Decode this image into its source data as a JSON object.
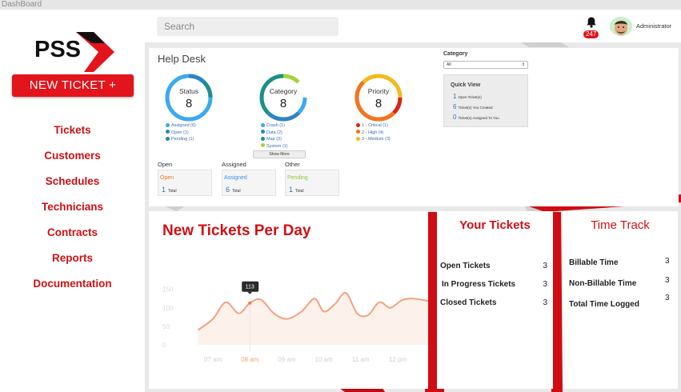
{
  "window": {
    "title": "DashBoard"
  },
  "sidebar": {
    "logo_text": "PSS",
    "new_ticket_label": "NEW TICKET  +",
    "items": [
      {
        "label": "Tickets"
      },
      {
        "label": "Customers"
      },
      {
        "label": "Schedules"
      },
      {
        "label": "Technicians"
      },
      {
        "label": "Contracts"
      },
      {
        "label": "Reports"
      },
      {
        "label": "Documentation"
      }
    ]
  },
  "topbar": {
    "search_placeholder": "Search",
    "notification_count": "247",
    "user_name": "Administrator"
  },
  "helpdesk": {
    "title": "Help Desk",
    "donuts": [
      {
        "label": "Status",
        "value": "8",
        "segments": [
          {
            "name": "Assigned (6)",
            "color": "#3aaaf0"
          },
          {
            "name": "Open (1)",
            "color": "#2d84c4"
          },
          {
            "name": "Pending (1)",
            "color": "#1c8f86"
          }
        ]
      },
      {
        "label": "Category",
        "value": "8",
        "segments": [
          {
            "name": "Crash (1)",
            "color": "#3aaaf0"
          },
          {
            "name": "Data (2)",
            "color": "#2d84c4"
          },
          {
            "name": "Map (3)",
            "color": "#1c8f86"
          },
          {
            "name": "System (1)",
            "color": "#a6d23a"
          }
        ]
      },
      {
        "label": "Priority",
        "value": "8",
        "segments": [
          {
            "name": "1 - Critical (1)",
            "color": "#d9231b"
          },
          {
            "name": "2 - High (4)",
            "color": "#f27420"
          },
          {
            "name": "3 - Medium (3)",
            "color": "#f7b81b"
          }
        ]
      }
    ],
    "show_more_label": "Show More",
    "groups": [
      {
        "title": "Open",
        "name": "Open",
        "name_color": "#f27420",
        "count": "1",
        "count_label": "Total"
      },
      {
        "title": "Assigned",
        "name": "Assigned",
        "name_color": "#3a8fe0",
        "count": "6",
        "count_label": "Total"
      },
      {
        "title": "Other",
        "name": "Pending",
        "name_color": "#8cc63f",
        "count": "1",
        "count_label": "Total"
      }
    ]
  },
  "category_panel": {
    "label": "Category",
    "selected": "All",
    "quickview": {
      "title": "Quick View",
      "rows": [
        {
          "count": "1",
          "text": "Open Ticket(s)"
        },
        {
          "count": "6",
          "text": "Ticket(s) You Created"
        },
        {
          "count": "0",
          "text": "Ticket(s) Assigned To You"
        }
      ]
    }
  },
  "new_tickets_chart": {
    "title": "New Tickets Per Day",
    "tooltip": "113"
  },
  "chart_data": {
    "type": "line",
    "title": "New Tickets Per Day",
    "x_ticks": [
      "07 am",
      "08 am",
      "09 am",
      "10 am",
      "11 am",
      "12 pm"
    ],
    "highlight_tick": "08 am",
    "y_ticks": [
      0,
      50,
      100,
      150
    ],
    "ylim": [
      0,
      160
    ],
    "series": [
      {
        "x": [
          6.6,
          7.0,
          7.35,
          7.7,
          8.0,
          8.3,
          8.65,
          9.0,
          9.4,
          9.75,
          10.0,
          10.3,
          10.6,
          10.9,
          11.2,
          11.5,
          11.8,
          12.1,
          12.4,
          12.85
        ],
        "values": [
          40,
          70,
          115,
          85,
          113,
          122,
          85,
          70,
          90,
          125,
          90,
          110,
          140,
          85,
          80,
          115,
          100,
          120,
          125,
          118
        ]
      }
    ],
    "line_color": "#f3a27c",
    "grid": false
  },
  "your_tickets": {
    "title": "Your Tickets",
    "rows": [
      {
        "label": "Open Tickets",
        "value": "3"
      },
      {
        "label": "In Progress Tickets",
        "value": "3"
      },
      {
        "label": "Closed Tickets",
        "value": "3"
      }
    ]
  },
  "time_track": {
    "title": "Time Track",
    "rows": [
      {
        "label": "Billable Time",
        "value": "3"
      },
      {
        "label": "Non-Billable Time",
        "value": "3"
      },
      {
        "label": "Total Time Logged",
        "value": "3"
      }
    ]
  },
  "colors": {
    "brand_red": "#e3141b",
    "link_blue": "#3a6fb0"
  }
}
